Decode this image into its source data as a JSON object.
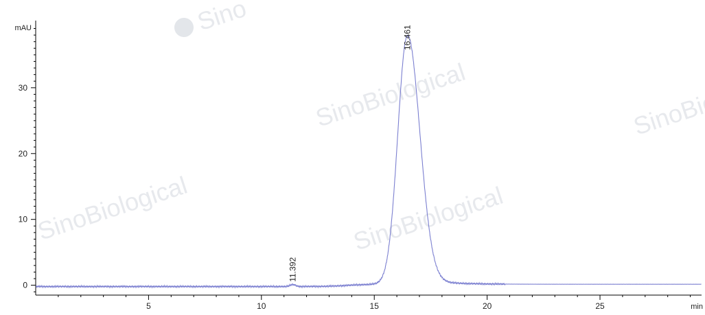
{
  "chart_data": {
    "type": "line",
    "xlabel": "min",
    "ylabel": "mAU",
    "xlim": [
      0,
      29.5
    ],
    "ylim": [
      -1.5,
      40.2
    ],
    "x_ticks": [
      5,
      10,
      15,
      20,
      25
    ],
    "y_ticks": [
      0,
      10,
      20,
      30
    ],
    "grid": false,
    "line_color": "#7b7fd0",
    "baseline": -0.2,
    "peaks": [
      {
        "label": "11.392",
        "x": 11.392,
        "y": 0.1
      },
      {
        "label": "16.461",
        "x": 16.461,
        "y": 37.8
      }
    ],
    "watermark": {
      "text": "SinoBiological",
      "logo_text": "Sino"
    }
  }
}
